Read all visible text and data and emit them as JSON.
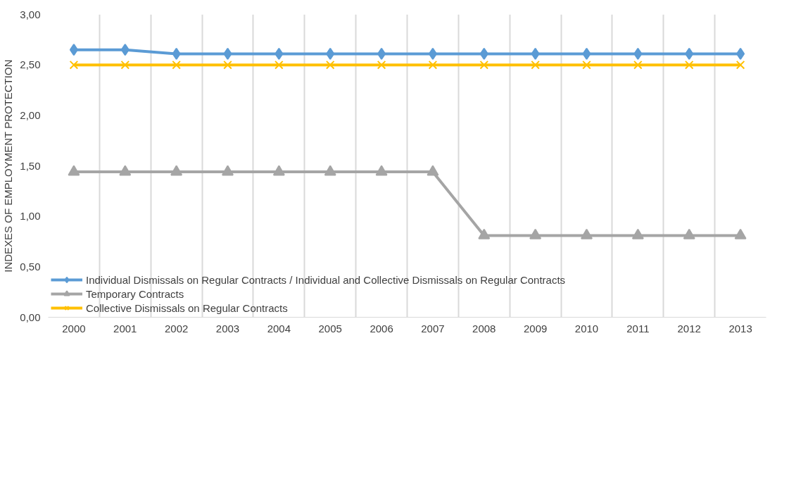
{
  "chart_data": {
    "type": "line",
    "ylabel": "INDEXES OF EMPLOYMENT PROTECTION",
    "categories": [
      "2000",
      "2001",
      "2002",
      "2003",
      "2004",
      "2005",
      "2006",
      "2007",
      "2008",
      "2009",
      "2010",
      "2011",
      "2012",
      "2013"
    ],
    "series": [
      {
        "name": "Individual Dismissals on Regular Contracts / Individual and Collective Dismissals on Regular Contracts",
        "color": "#5b9bd5",
        "marker": "diamond",
        "values": [
          2.65,
          2.65,
          2.61,
          2.61,
          2.61,
          2.61,
          2.61,
          2.61,
          2.61,
          2.61,
          2.61,
          2.61,
          2.61,
          2.61
        ]
      },
      {
        "name": "Temporary Contracts",
        "color": "#a5a5a5",
        "marker": "triangle",
        "values": [
          1.44,
          1.44,
          1.44,
          1.44,
          1.44,
          1.44,
          1.44,
          1.44,
          0.81,
          0.81,
          0.81,
          0.81,
          0.81,
          0.81
        ]
      },
      {
        "name": "Collective Dismissals on Regular Contracts",
        "color": "#ffc000",
        "marker": "cross",
        "values": [
          2.5,
          2.5,
          2.5,
          2.5,
          2.5,
          2.5,
          2.5,
          2.5,
          2.5,
          2.5,
          2.5,
          2.5,
          2.5,
          2.5
        ]
      }
    ],
    "ylim": [
      0,
      3
    ],
    "yticks": [
      {
        "value": 0,
        "label": "0,00"
      },
      {
        "value": 0.5,
        "label": "0,50"
      },
      {
        "value": 1,
        "label": "1,00"
      },
      {
        "value": 1.5,
        "label": "1,50"
      },
      {
        "value": 2,
        "label": "2,00"
      },
      {
        "value": 2.5,
        "label": "2,50"
      },
      {
        "value": 3,
        "label": "3,00"
      }
    ],
    "grid": "x",
    "legend": "bottom",
    "line_style": "solid"
  }
}
